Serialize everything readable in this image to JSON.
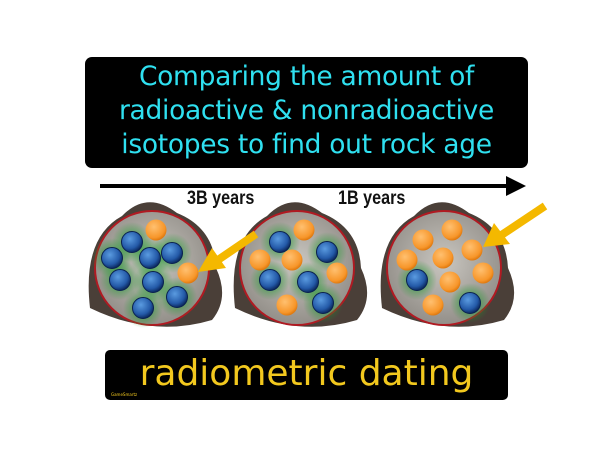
{
  "title_lines": [
    "Comparing the amount of",
    "radioactive & nonradioactive",
    "isotopes to find out rock age"
  ],
  "timeline_labels": [
    "3B years",
    "1B years"
  ],
  "caption": "radiometric dating",
  "watermark": "GameSmartz",
  "colors": {
    "title_text": "#2fe0f0",
    "caption_text": "#f2c81e",
    "radioactive_isotope": "#f79a2c",
    "nonradioactive_isotope": "#2a5fb0",
    "arrow": "#f4b800"
  },
  "rocks": [
    {
      "radioactive_count": 2,
      "nonradioactive_count": 8
    },
    {
      "radioactive_count": 5,
      "nonradioactive_count": 5
    },
    {
      "radioactive_count": 8,
      "nonradioactive_count": 2
    }
  ]
}
